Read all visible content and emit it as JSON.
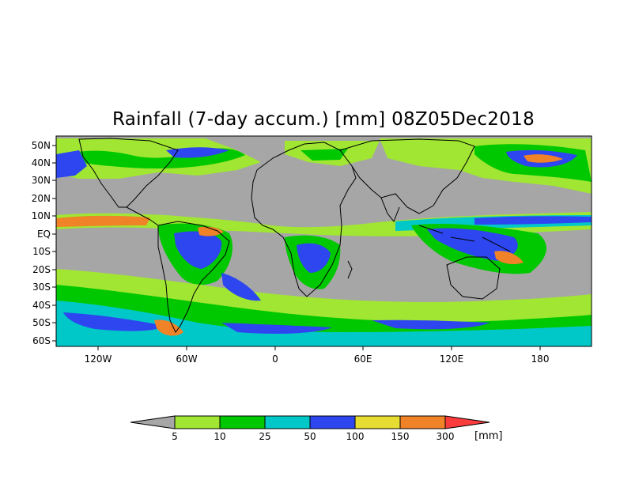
{
  "title": "Rainfall (7-day accum.) [mm] 08Z05Dec2018",
  "map": {
    "lat_labels": [
      "50N",
      "40N",
      "30N",
      "20N",
      "10N",
      "EQ",
      "10S",
      "20S",
      "30S",
      "40S",
      "50S",
      "60S"
    ],
    "lon_labels": [
      "120W",
      "60W",
      "0",
      "60E",
      "120E",
      "180"
    ],
    "ocean_no_rain_color": "#a6a6a6",
    "coastline_color": "#000000"
  },
  "colorbar": {
    "unit": "[mm]",
    "thresholds": [
      "5",
      "10",
      "25",
      "50",
      "100",
      "150",
      "300"
    ],
    "colors": [
      "#a6a6a6",
      "#a0e632",
      "#00c800",
      "#00c8c8",
      "#2d46f0",
      "#e6dc32",
      "#f08228",
      "#fa3c3c"
    ]
  }
}
